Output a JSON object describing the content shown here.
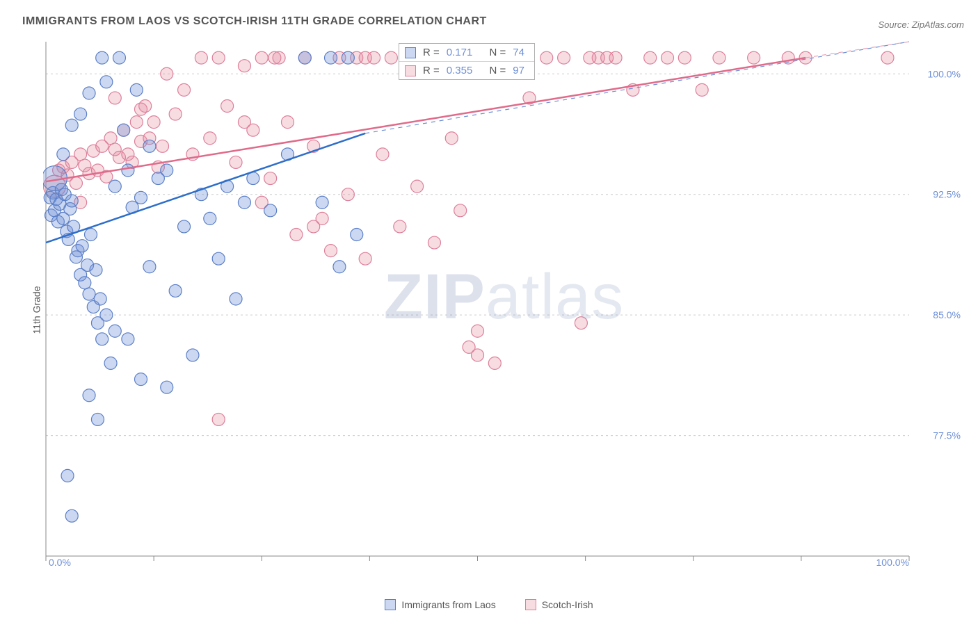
{
  "title": "IMMIGRANTS FROM LAOS VS SCOTCH-IRISH 11TH GRADE CORRELATION CHART",
  "source_label": "Source: ZipAtlas.com",
  "ylabel": "11th Grade",
  "watermark": {
    "zip": "ZIP",
    "atlas": "atlas"
  },
  "chart": {
    "type": "scatter",
    "background_color": "#ffffff",
    "grid_color": "#cccccc",
    "axis_color": "#888888",
    "xlim": [
      0,
      100
    ],
    "ylim": [
      70,
      102
    ],
    "y_ticks": [
      77.5,
      85.0,
      92.5,
      100.0
    ],
    "y_tick_labels": [
      "77.5%",
      "85.0%",
      "92.5%",
      "100.0%"
    ],
    "x_axis_labels": {
      "left": "0.0%",
      "right": "100.0%"
    },
    "x_minor_ticks": [
      0,
      12.5,
      25,
      37.5,
      50,
      62.5,
      75,
      87.5,
      100
    ],
    "marker_radius": 9,
    "marker_radius_large": 14,
    "label_fontsize": 14,
    "title_fontsize": 16,
    "tick_label_color": "#6d8fd6",
    "series": [
      {
        "name": "Immigrants from Laos",
        "color_fill": "rgba(109,143,214,0.35)",
        "color_stroke": "#5b7fc7",
        "trend_color": "#2d6ec9",
        "R": 0.171,
        "N": 74,
        "regression": {
          "x1": 0,
          "y1": 89.5,
          "x2": 37,
          "y2": 96.3,
          "x_dash_end": 100,
          "y_dash_end": 102
        },
        "points": [
          [
            0.5,
            92.3
          ],
          [
            0.6,
            91.2
          ],
          [
            0.8,
            92.6
          ],
          [
            1.0,
            93.5,
            18
          ],
          [
            1.0,
            91.5
          ],
          [
            1.2,
            92.2
          ],
          [
            1.4,
            90.8
          ],
          [
            1.6,
            91.9
          ],
          [
            1.8,
            92.8
          ],
          [
            2.0,
            91.0
          ],
          [
            2.2,
            92.5
          ],
          [
            2.4,
            90.2
          ],
          [
            2.6,
            89.7
          ],
          [
            2.8,
            91.6
          ],
          [
            3.0,
            92.1
          ],
          [
            3.2,
            90.5
          ],
          [
            3.5,
            88.6
          ],
          [
            3.7,
            89.0
          ],
          [
            4.0,
            87.5
          ],
          [
            4.2,
            89.3
          ],
          [
            4.5,
            87.0
          ],
          [
            4.8,
            88.1
          ],
          [
            5.0,
            86.3
          ],
          [
            5.2,
            90.0
          ],
          [
            5.5,
            85.5
          ],
          [
            5.8,
            87.8
          ],
          [
            6.0,
            84.5
          ],
          [
            6.3,
            86.0
          ],
          [
            6.5,
            83.5
          ],
          [
            7.0,
            85.0
          ],
          [
            7.5,
            82.0
          ],
          [
            8.0,
            93.0
          ],
          [
            8.5,
            101.0
          ],
          [
            9.0,
            96.5
          ],
          [
            9.5,
            94.0
          ],
          [
            10.0,
            91.7
          ],
          [
            10.5,
            99.0
          ],
          [
            11.0,
            92.3
          ],
          [
            12.0,
            88.0
          ],
          [
            13.0,
            93.5
          ],
          [
            6.5,
            101.0
          ],
          [
            7.0,
            99.5
          ],
          [
            4.0,
            97.5
          ],
          [
            3.0,
            96.8
          ],
          [
            2.0,
            95.0
          ],
          [
            14.0,
            80.5
          ],
          [
            15.0,
            86.5
          ],
          [
            16.0,
            90.5
          ],
          [
            17.0,
            82.5
          ],
          [
            18.0,
            92.5
          ],
          [
            19.0,
            91.0
          ],
          [
            20.0,
            88.5
          ],
          [
            21.0,
            93.0
          ],
          [
            22.0,
            86.0
          ],
          [
            23.0,
            92.0
          ],
          [
            5.0,
            80.0
          ],
          [
            6.0,
            78.5
          ],
          [
            2.5,
            75.0
          ],
          [
            3.0,
            72.5
          ],
          [
            8.0,
            84.0
          ],
          [
            9.5,
            83.5
          ],
          [
            11.0,
            81.0
          ],
          [
            24.0,
            93.5
          ],
          [
            26.0,
            91.5
          ],
          [
            28.0,
            95.0
          ],
          [
            30.0,
            101.0
          ],
          [
            32.0,
            92.0
          ],
          [
            34.0,
            88.0
          ],
          [
            36.0,
            90.0
          ],
          [
            33.0,
            101.0
          ],
          [
            35.0,
            101.0
          ],
          [
            5.0,
            98.8
          ],
          [
            12.0,
            95.5
          ],
          [
            14.0,
            94.0
          ]
        ]
      },
      {
        "name": "Scotch-Irish",
        "color_fill": "rgba(230,138,160,0.30)",
        "color_stroke": "#dd7f9a",
        "trend_color": "#e06a8a",
        "R": 0.355,
        "N": 97,
        "regression": {
          "x1": 0,
          "y1": 93.3,
          "x2": 88,
          "y2": 101.0,
          "x_dash_end": 100,
          "y_dash_end": 102
        },
        "points": [
          [
            1.0,
            93.0,
            16
          ],
          [
            1.5,
            94.0
          ],
          [
            2.0,
            94.2
          ],
          [
            2.5,
            93.7
          ],
          [
            3.0,
            94.5
          ],
          [
            3.5,
            93.2
          ],
          [
            4.0,
            95.0
          ],
          [
            4.5,
            94.3
          ],
          [
            5.0,
            93.8
          ],
          [
            5.5,
            95.2
          ],
          [
            6.0,
            94.0
          ],
          [
            6.5,
            95.5
          ],
          [
            7.0,
            93.6
          ],
          [
            7.5,
            96.0
          ],
          [
            8.0,
            95.3
          ],
          [
            8.5,
            94.8
          ],
          [
            9.0,
            96.5
          ],
          [
            9.5,
            95.0
          ],
          [
            10.0,
            94.5
          ],
          [
            10.5,
            97.0
          ],
          [
            11.0,
            95.8
          ],
          [
            11.5,
            98.0
          ],
          [
            12.0,
            96.0
          ],
          [
            13.0,
            94.2
          ],
          [
            14.0,
            100.0
          ],
          [
            15.0,
            97.5
          ],
          [
            16.0,
            99.0
          ],
          [
            17.0,
            95.0
          ],
          [
            18.0,
            101.0
          ],
          [
            19.0,
            96.0
          ],
          [
            20.0,
            101.0
          ],
          [
            21.0,
            98.0
          ],
          [
            22.0,
            94.5
          ],
          [
            23.0,
            100.5
          ],
          [
            24.0,
            96.5
          ],
          [
            25.0,
            92.0
          ],
          [
            26.0,
            93.5
          ],
          [
            27.0,
            101.0
          ],
          [
            28.0,
            97.0
          ],
          [
            29.0,
            90.0
          ],
          [
            30.0,
            101.0
          ],
          [
            31.0,
            95.5
          ],
          [
            32.0,
            91.0
          ],
          [
            33.0,
            89.0
          ],
          [
            34.0,
            101.0
          ],
          [
            35.0,
            92.5
          ],
          [
            36.0,
            101.0
          ],
          [
            37.0,
            88.5
          ],
          [
            38.0,
            101.0
          ],
          [
            39.0,
            95.0
          ],
          [
            40.0,
            101.0
          ],
          [
            41.0,
            90.5
          ],
          [
            42.0,
            101.0
          ],
          [
            43.0,
            93.0
          ],
          [
            44.0,
            101.0
          ],
          [
            45.0,
            89.5
          ],
          [
            46.0,
            101.0
          ],
          [
            47.0,
            96.0
          ],
          [
            48.0,
            91.5
          ],
          [
            49.0,
            101.0
          ],
          [
            50.0,
            84.0
          ],
          [
            51.0,
            101.0
          ],
          [
            52.0,
            82.0
          ],
          [
            53.0,
            101.0
          ],
          [
            54.0,
            101.0
          ],
          [
            56.0,
            98.5
          ],
          [
            58.0,
            101.0
          ],
          [
            49.0,
            83.0
          ],
          [
            50.0,
            82.5
          ],
          [
            20.0,
            78.5
          ],
          [
            11.0,
            97.8
          ],
          [
            60.0,
            101.0
          ],
          [
            62.0,
            84.5
          ],
          [
            64.0,
            101.0
          ],
          [
            66.0,
            101.0
          ],
          [
            68.0,
            99.0
          ],
          [
            70.0,
            101.0
          ],
          [
            72.0,
            101.0
          ],
          [
            74.0,
            101.0
          ],
          [
            76.0,
            99.0
          ],
          [
            78.0,
            101.0
          ],
          [
            82.0,
            101.0
          ],
          [
            86.0,
            101.0
          ],
          [
            88.0,
            101.0
          ],
          [
            97.5,
            101.0
          ],
          [
            63.0,
            101.0
          ],
          [
            65.0,
            101.0
          ],
          [
            45.0,
            101.0
          ],
          [
            46.5,
            101.0
          ],
          [
            23.0,
            97.0
          ],
          [
            25.0,
            101.0
          ],
          [
            26.5,
            101.0
          ],
          [
            12.5,
            97.0
          ],
          [
            13.5,
            95.5
          ],
          [
            8.0,
            98.5
          ],
          [
            31.0,
            90.5
          ],
          [
            37.0,
            101.0
          ],
          [
            4.0,
            92.0
          ]
        ]
      }
    ]
  },
  "legend_top": {
    "rows": [
      {
        "swatch": "blue",
        "r_label": "R =",
        "r_value": "0.171",
        "n_label": "N =",
        "n_value": "74"
      },
      {
        "swatch": "pink",
        "r_label": "R =",
        "r_value": "0.355",
        "n_label": "N =",
        "n_value": "97"
      }
    ]
  },
  "legend_bottom": {
    "items": [
      {
        "swatch": "blue",
        "label": "Immigrants from Laos"
      },
      {
        "swatch": "pink",
        "label": "Scotch-Irish"
      }
    ]
  }
}
